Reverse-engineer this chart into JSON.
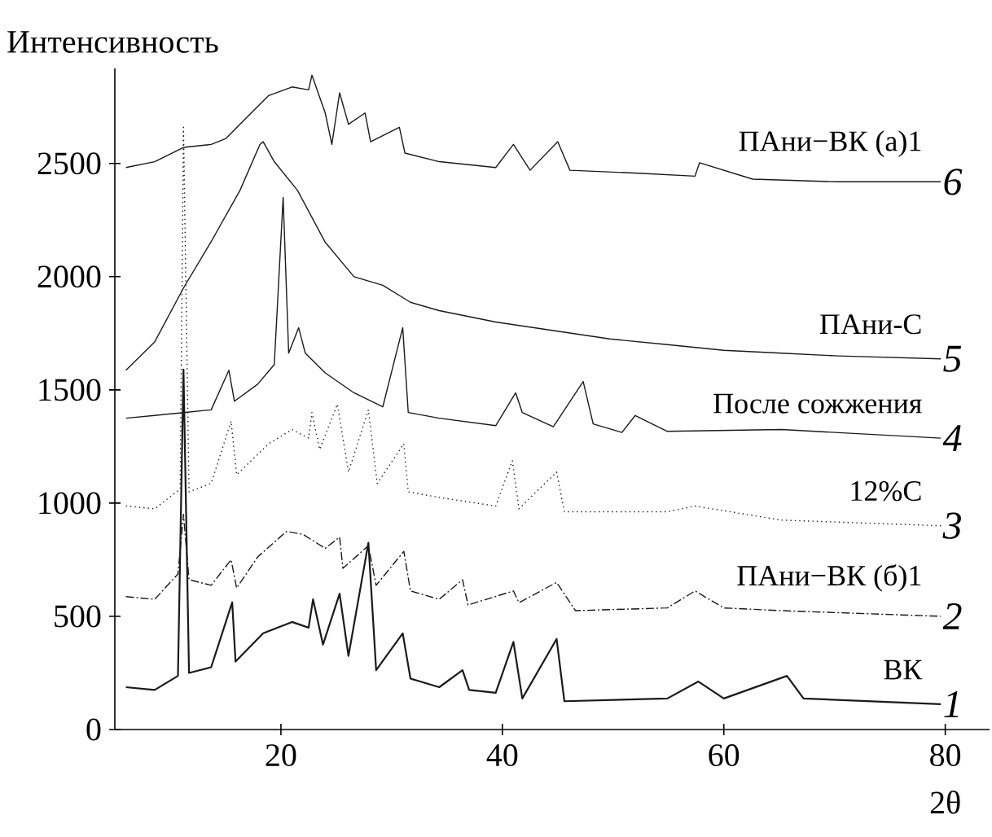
{
  "chart_data": {
    "type": "line",
    "xlabel": "2θ",
    "ylabel": "Интенсивность",
    "xlim": [
      5,
      84
    ],
    "ylim": [
      0,
      2920
    ],
    "xticks": [
      20,
      40,
      60,
      80
    ],
    "yticks": [
      0,
      500,
      1000,
      1500,
      2000,
      2500
    ],
    "grid": false,
    "marker": "none",
    "series": [
      {
        "name": "ВК",
        "color": "#1a1a1a",
        "line_style": "solid",
        "x": [
          6,
          8.6,
          10.7,
          11.2,
          11.7,
          13.7,
          15.6,
          15.9,
          18.4,
          21,
          22.5,
          22.9,
          23.8,
          25.3,
          26.1,
          27.9,
          28.6,
          31,
          31.7,
          34.3,
          36.4,
          37,
          39.4,
          41,
          41.8,
          44.9,
          45.6,
          54.9,
          57.7,
          60,
          65.7,
          67.2,
          79.6
        ],
        "values": [
          187,
          175,
          237,
          1590,
          250,
          275,
          562,
          300,
          425,
          475,
          450,
          575,
          375,
          600,
          325,
          825,
          262,
          425,
          225,
          187,
          262,
          175,
          162,
          387,
          137,
          400,
          125,
          137,
          212,
          137,
          237,
          137,
          112
        ]
      },
      {
        "name": "ПАни−ВК (б)1",
        "color": "#1a1a1a",
        "line_style": "dashed",
        "x": [
          6,
          8.6,
          10.7,
          11.2,
          11.7,
          13.7,
          15.5,
          16,
          17.9,
          20.5,
          22,
          24,
          25.3,
          25.6,
          27.9,
          28.6,
          31.1,
          31.7,
          34.3,
          36.4,
          36.9,
          41,
          41.5,
          44.9,
          46.6,
          54.9,
          57.4,
          60,
          65.2,
          79.6
        ],
        "values": [
          587,
          575,
          687,
          950,
          662,
          637,
          750,
          625,
          762,
          875,
          862,
          800,
          850,
          712,
          812,
          637,
          787,
          612,
          575,
          662,
          550,
          612,
          560,
          650,
          525,
          537,
          612,
          537,
          525,
          500
        ]
      },
      {
        "name": "12%С",
        "color": "#1a1a1a",
        "line_style": "dotted",
        "x": [
          6,
          8.6,
          10.9,
          11.2,
          11.7,
          13.7,
          15.5,
          16,
          18.9,
          21,
          22.5,
          22.8,
          23.5,
          25.1,
          26.1,
          27.9,
          28.7,
          31.1,
          31.5,
          34.3,
          39.4,
          40.9,
          41.5,
          44.9,
          45.6,
          54.9,
          57.4,
          65.2,
          79.6
        ],
        "values": [
          987,
          975,
          1062,
          2660,
          1050,
          1087,
          1362,
          1125,
          1262,
          1325,
          1287,
          1400,
          1237,
          1437,
          1137,
          1412,
          1087,
          1262,
          1050,
          1025,
          987,
          1187,
          975,
          1137,
          962,
          962,
          987,
          925,
          900
        ]
      },
      {
        "name": "После сожжения",
        "color": "#1a1a1a",
        "line_style": "solid",
        "x": [
          6,
          8.6,
          11.2,
          13.7,
          15.3,
          15.8,
          17.9,
          19.4,
          20.2,
          20.7,
          21.6,
          22.2,
          24,
          26.6,
          29.2,
          31,
          31.5,
          34.3,
          39.4,
          41.2,
          41.8,
          44.6,
          47.3,
          48.2,
          50.8,
          52,
          54.9,
          65.2,
          79.6
        ],
        "values": [
          1375,
          1387,
          1400,
          1412,
          1587,
          1450,
          1525,
          1612,
          2350,
          1662,
          1775,
          1662,
          1575,
          1487,
          1425,
          1775,
          1400,
          1375,
          1342,
          1487,
          1400,
          1337,
          1537,
          1350,
          1312,
          1387,
          1317,
          1325,
          1287
        ]
      },
      {
        "name": "ПАни-С",
        "color": "#1a1a1a",
        "line_style": "solid",
        "x": [
          6,
          8.6,
          11.2,
          13.7,
          16.3,
          18.1,
          18.4,
          19.4,
          21.5,
          24,
          26.6,
          29.2,
          31.7,
          34.3,
          39.4,
          44.6,
          49.7,
          54.9,
          60,
          65.2,
          70.3,
          79.6
        ],
        "values": [
          1587,
          1712,
          1950,
          2155,
          2381,
          2584,
          2596,
          2508,
          2381,
          2152,
          2000,
          1962,
          1887,
          1850,
          1800,
          1762,
          1725,
          1700,
          1675,
          1662,
          1650,
          1637
        ]
      },
      {
        "name": "ПАни−ВК (а)1",
        "color": "#1a1a1a",
        "line_style": "solid",
        "x": [
          6,
          8.6,
          11.2,
          13.7,
          15,
          16.8,
          18.9,
          21,
          22.5,
          22.8,
          24,
          24.6,
          25.3,
          26.1,
          27.6,
          28.1,
          30.7,
          31.2,
          34.3,
          39.4,
          41,
          42.5,
          45,
          46.1,
          52.3,
          57.4,
          57.8,
          62.6,
          70.3,
          79.6
        ],
        "values": [
          2482,
          2508,
          2571,
          2584,
          2609,
          2698,
          2800,
          2838,
          2825,
          2890,
          2723,
          2584,
          2812,
          2673,
          2723,
          2596,
          2660,
          2546,
          2508,
          2482,
          2584,
          2470,
          2596,
          2470,
          2457,
          2444,
          2503,
          2431,
          2419,
          2419
        ]
      }
    ],
    "annotations": [
      "1",
      "2",
      "3",
      "4",
      "5",
      "6"
    ]
  }
}
